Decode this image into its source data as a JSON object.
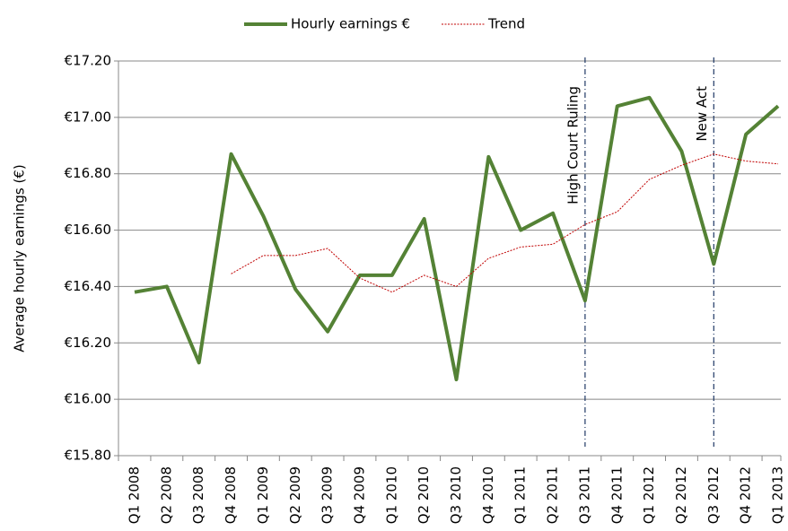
{
  "chart_data": {
    "type": "line",
    "y_label": "Average hourly earnings (€)",
    "categories": [
      "Q1 2008",
      "Q2 2008",
      "Q3 2008",
      "Q4 2008",
      "Q1 2009",
      "Q2 2009",
      "Q3 2009",
      "Q4 2009",
      "Q1 2010",
      "Q2 2010",
      "Q3 2010",
      "Q4 2010",
      "Q1 2011",
      "Q2 2011",
      "Q3 2011",
      "Q4 2011",
      "Q1 2012",
      "Q2 2012",
      "Q3 2012",
      "Q4 2012",
      "Q1 2013"
    ],
    "series": [
      {
        "name": "Hourly earnings €",
        "color": "#548235",
        "style": "solid",
        "values": [
          16.38,
          16.4,
          16.13,
          16.87,
          16.65,
          16.39,
          16.24,
          16.44,
          16.44,
          16.64,
          16.07,
          16.86,
          16.6,
          16.66,
          16.35,
          17.04,
          17.07,
          16.88,
          16.48,
          16.94,
          17.04
        ]
      },
      {
        "name": "Trend",
        "color": "#c00000",
        "style": "dotted",
        "values": [
          null,
          null,
          null,
          16.445,
          16.51,
          16.51,
          16.535,
          16.43,
          16.38,
          16.44,
          16.4,
          16.5,
          16.54,
          16.55,
          16.62,
          16.665,
          16.78,
          16.83,
          16.87,
          16.845,
          16.835
        ]
      }
    ],
    "ylim": [
      15.8,
      17.2
    ],
    "yticks": [
      {
        "value": 15.8,
        "label": "€15.80"
      },
      {
        "value": 16.0,
        "label": "€16.00"
      },
      {
        "value": 16.2,
        "label": "€16.20"
      },
      {
        "value": 16.4,
        "label": "€16.40"
      },
      {
        "value": 16.6,
        "label": "€16.60"
      },
      {
        "value": 16.8,
        "label": "€16.80"
      },
      {
        "value": 17.0,
        "label": "€17.00"
      },
      {
        "value": 17.2,
        "label": "€17.20"
      }
    ],
    "grid": true,
    "legend": "top",
    "annotations": [
      {
        "category": "Q3 2011",
        "text": "High Court Ruling"
      },
      {
        "category": "Q3 2012",
        "text": "New Act"
      }
    ]
  }
}
